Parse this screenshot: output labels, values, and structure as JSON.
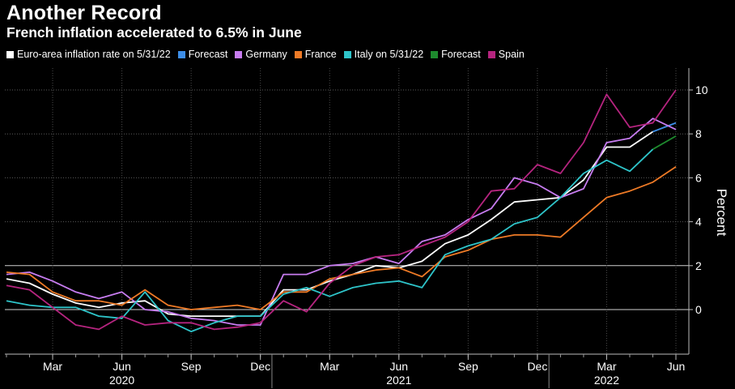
{
  "chart_data": {
    "type": "line",
    "title": "Another Record",
    "subtitle": "French inflation accelerated to 6.5% in June",
    "ylabel": "Percent",
    "ylim": [
      -2,
      11
    ],
    "y_ticks": [
      0,
      2,
      4,
      6,
      8,
      10
    ],
    "grid": "horizontal dotted at y ticks, solid line at 0 and 2",
    "legend_position": "top",
    "x_start": "2020-01",
    "x_end": "2022-06",
    "x_tick_labels": [
      {
        "month": "2020-03",
        "label": "Mar"
      },
      {
        "month": "2020-06",
        "label": "Jun"
      },
      {
        "month": "2020-09",
        "label": "Sep"
      },
      {
        "month": "2020-12",
        "label": "Dec"
      },
      {
        "month": "2021-03",
        "label": "Mar"
      },
      {
        "month": "2021-06",
        "label": "Jun"
      },
      {
        "month": "2021-09",
        "label": "Sep"
      },
      {
        "month": "2021-12",
        "label": "Dec"
      },
      {
        "month": "2022-03",
        "label": "Mar"
      },
      {
        "month": "2022-06",
        "label": "Jun"
      }
    ],
    "year_labels": [
      {
        "month": "2020-06",
        "label": "2020"
      },
      {
        "month": "2021-06",
        "label": "2021"
      },
      {
        "month": "2022-03",
        "label": "2022"
      }
    ],
    "series": [
      {
        "name": "Euro-area inflation rate on 5/31/22",
        "color": "#ffffff",
        "x": [
          "2020-01",
          "2020-02",
          "2020-03",
          "2020-04",
          "2020-05",
          "2020-06",
          "2020-07",
          "2020-08",
          "2020-09",
          "2020-10",
          "2020-11",
          "2020-12",
          "2021-01",
          "2021-02",
          "2021-03",
          "2021-04",
          "2021-05",
          "2021-06",
          "2021-07",
          "2021-08",
          "2021-09",
          "2021-10",
          "2021-11",
          "2021-12",
          "2022-01",
          "2022-02",
          "2022-03",
          "2022-04",
          "2022-05"
        ],
        "y": [
          1.4,
          1.2,
          0.7,
          0.3,
          0.1,
          0.3,
          0.4,
          -0.2,
          -0.3,
          -0.3,
          -0.3,
          -0.3,
          0.9,
          0.9,
          1.3,
          1.6,
          2.0,
          1.9,
          2.2,
          3.0,
          3.4,
          4.1,
          4.9,
          5.0,
          5.1,
          5.9,
          7.4,
          7.4,
          8.1
        ]
      },
      {
        "name": "Forecast",
        "color": "#3d8ee8",
        "x": [
          "2022-05",
          "2022-06"
        ],
        "y": [
          8.1,
          8.5
        ]
      },
      {
        "name": "Germany",
        "color": "#c77cf0",
        "x": [
          "2020-01",
          "2020-02",
          "2020-03",
          "2020-04",
          "2020-05",
          "2020-06",
          "2020-07",
          "2020-08",
          "2020-09",
          "2020-10",
          "2020-11",
          "2020-12",
          "2021-01",
          "2021-02",
          "2021-03",
          "2021-04",
          "2021-05",
          "2021-06",
          "2021-07",
          "2021-08",
          "2021-09",
          "2021-10",
          "2021-11",
          "2021-12",
          "2022-01",
          "2022-02",
          "2022-03",
          "2022-04",
          "2022-05",
          "2022-06"
        ],
        "y": [
          1.6,
          1.7,
          1.3,
          0.8,
          0.5,
          0.8,
          0.0,
          -0.1,
          -0.4,
          -0.5,
          -0.7,
          -0.7,
          1.6,
          1.6,
          2.0,
          2.1,
          2.4,
          2.1,
          3.1,
          3.4,
          4.1,
          4.6,
          6.0,
          5.7,
          5.1,
          5.5,
          7.6,
          7.8,
          8.7,
          8.2
        ]
      },
      {
        "name": "France",
        "color": "#ee7a26",
        "x": [
          "2020-01",
          "2020-02",
          "2020-03",
          "2020-04",
          "2020-05",
          "2020-06",
          "2020-07",
          "2020-08",
          "2020-09",
          "2020-10",
          "2020-11",
          "2020-12",
          "2021-01",
          "2021-02",
          "2021-03",
          "2021-04",
          "2021-05",
          "2021-06",
          "2021-07",
          "2021-08",
          "2021-09",
          "2021-10",
          "2021-11",
          "2021-12",
          "2022-01",
          "2022-02",
          "2022-03",
          "2022-04",
          "2022-05",
          "2022-06"
        ],
        "y": [
          1.7,
          1.6,
          0.8,
          0.4,
          0.4,
          0.2,
          0.9,
          0.2,
          0.0,
          0.1,
          0.2,
          0.0,
          0.8,
          0.8,
          1.4,
          1.6,
          1.8,
          1.9,
          1.5,
          2.4,
          2.7,
          3.2,
          3.4,
          3.4,
          3.3,
          4.2,
          5.1,
          5.4,
          5.8,
          6.5
        ]
      },
      {
        "name": "Italy on 5/31/22",
        "color": "#2ec4c9",
        "x": [
          "2020-01",
          "2020-02",
          "2020-03",
          "2020-04",
          "2020-05",
          "2020-06",
          "2020-07",
          "2020-08",
          "2020-09",
          "2020-10",
          "2020-11",
          "2020-12",
          "2021-01",
          "2021-02",
          "2021-03",
          "2021-04",
          "2021-05",
          "2021-06",
          "2021-07",
          "2021-08",
          "2021-09",
          "2021-10",
          "2021-11",
          "2021-12",
          "2022-01",
          "2022-02",
          "2022-03",
          "2022-04",
          "2022-05"
        ],
        "y": [
          0.4,
          0.2,
          0.1,
          0.1,
          -0.3,
          -0.4,
          0.8,
          -0.5,
          -1.0,
          -0.6,
          -0.3,
          -0.3,
          0.7,
          1.0,
          0.6,
          1.0,
          1.2,
          1.3,
          1.0,
          2.5,
          2.9,
          3.2,
          3.9,
          4.2,
          5.1,
          6.2,
          6.8,
          6.3,
          7.3
        ]
      },
      {
        "name": "Forecast",
        "color": "#1e8a2e",
        "x": [
          "2022-05",
          "2022-06"
        ],
        "y": [
          7.3,
          7.9
        ]
      },
      {
        "name": "Spain",
        "color": "#b5247f",
        "x": [
          "2020-01",
          "2020-02",
          "2020-03",
          "2020-04",
          "2020-05",
          "2020-06",
          "2020-07",
          "2020-08",
          "2020-09",
          "2020-10",
          "2020-11",
          "2020-12",
          "2021-01",
          "2021-02",
          "2021-03",
          "2021-04",
          "2021-05",
          "2021-06",
          "2021-07",
          "2021-08",
          "2021-09",
          "2021-10",
          "2021-11",
          "2021-12",
          "2022-01",
          "2022-02",
          "2022-03",
          "2022-04",
          "2022-05",
          "2022-06"
        ],
        "y": [
          1.1,
          0.9,
          0.1,
          -0.7,
          -0.9,
          -0.3,
          -0.7,
          -0.6,
          -0.6,
          -0.9,
          -0.8,
          -0.6,
          0.4,
          -0.1,
          1.2,
          2.0,
          2.4,
          2.5,
          2.9,
          3.3,
          4.0,
          5.4,
          5.5,
          6.6,
          6.2,
          7.6,
          9.8,
          8.3,
          8.5,
          10.0
        ]
      }
    ]
  }
}
